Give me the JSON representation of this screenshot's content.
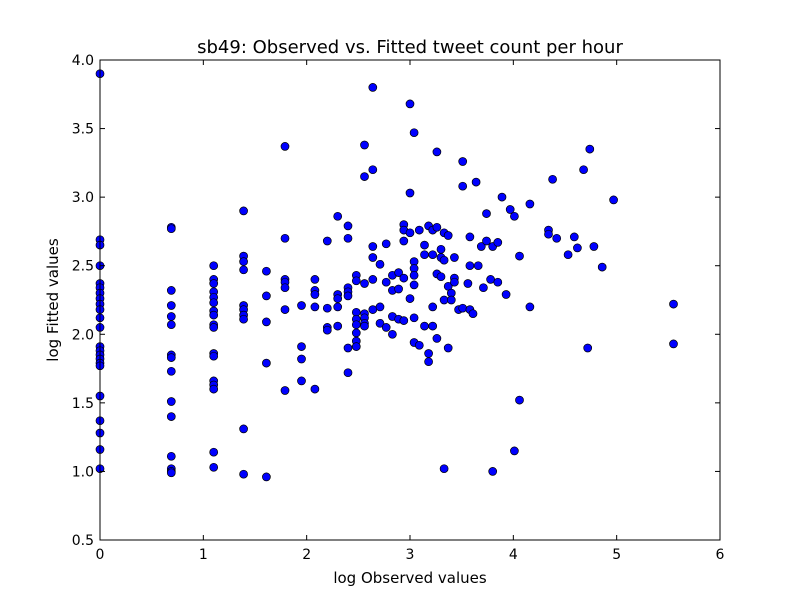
{
  "chart_data": {
    "type": "scatter",
    "title": "sb49: Observed vs. Fitted tweet count per hour",
    "xlabel": "log Observed values",
    "ylabel": "log Fitted values",
    "xlim": [
      0,
      6
    ],
    "ylim": [
      0.5,
      4.0
    ],
    "xticks": [
      "0",
      "1",
      "2",
      "3",
      "4",
      "5",
      "6"
    ],
    "yticks": [
      "0.5",
      "1.0",
      "1.5",
      "2.0",
      "2.5",
      "3.0",
      "3.5",
      "4.0"
    ],
    "grid": false,
    "legend": "none",
    "marker_color": "#0000ff",
    "marker_edge": "#000000",
    "points": [
      [
        0.0,
        3.9
      ],
      [
        0.0,
        2.69
      ],
      [
        0.0,
        2.65
      ],
      [
        0.0,
        2.5
      ],
      [
        0.0,
        2.37
      ],
      [
        0.0,
        2.34
      ],
      [
        0.0,
        2.3
      ],
      [
        0.0,
        2.26
      ],
      [
        0.0,
        2.22
      ],
      [
        0.0,
        2.18
      ],
      [
        0.0,
        2.12
      ],
      [
        0.0,
        2.05
      ],
      [
        0.0,
        1.91
      ],
      [
        0.0,
        1.88
      ],
      [
        0.0,
        1.85
      ],
      [
        0.0,
        1.82
      ],
      [
        0.0,
        1.79
      ],
      [
        0.0,
        1.77
      ],
      [
        0.0,
        1.55
      ],
      [
        0.0,
        1.37
      ],
      [
        0.0,
        1.28
      ],
      [
        0.0,
        1.16
      ],
      [
        0.0,
        1.02
      ],
      [
        0.69,
        2.78
      ],
      [
        0.69,
        2.77
      ],
      [
        0.69,
        2.32
      ],
      [
        0.69,
        2.21
      ],
      [
        0.69,
        2.13
      ],
      [
        0.69,
        2.07
      ],
      [
        0.69,
        1.85
      ],
      [
        0.69,
        1.83
      ],
      [
        0.69,
        1.73
      ],
      [
        0.69,
        1.51
      ],
      [
        0.69,
        1.4
      ],
      [
        0.69,
        1.11
      ],
      [
        0.69,
        1.02
      ],
      [
        0.69,
        1.0
      ],
      [
        0.69,
        0.99
      ],
      [
        1.1,
        2.5
      ],
      [
        1.1,
        2.4
      ],
      [
        1.1,
        2.37
      ],
      [
        1.1,
        2.31
      ],
      [
        1.1,
        2.27
      ],
      [
        1.1,
        2.23
      ],
      [
        1.1,
        2.17
      ],
      [
        1.1,
        2.14
      ],
      [
        1.1,
        2.07
      ],
      [
        1.1,
        2.05
      ],
      [
        1.1,
        1.86
      ],
      [
        1.1,
        1.84
      ],
      [
        1.1,
        1.66
      ],
      [
        1.1,
        1.63
      ],
      [
        1.1,
        1.6
      ],
      [
        1.1,
        1.14
      ],
      [
        1.1,
        1.03
      ],
      [
        1.39,
        2.9
      ],
      [
        1.39,
        2.57
      ],
      [
        1.39,
        2.53
      ],
      [
        1.39,
        2.47
      ],
      [
        1.39,
        2.21
      ],
      [
        1.39,
        2.18
      ],
      [
        1.39,
        2.14
      ],
      [
        1.39,
        2.11
      ],
      [
        1.39,
        1.31
      ],
      [
        1.39,
        0.98
      ],
      [
        1.61,
        2.46
      ],
      [
        1.61,
        2.28
      ],
      [
        1.61,
        2.09
      ],
      [
        1.61,
        1.79
      ],
      [
        1.61,
        0.96
      ],
      [
        1.79,
        3.37
      ],
      [
        1.79,
        2.7
      ],
      [
        1.79,
        2.4
      ],
      [
        1.79,
        2.38
      ],
      [
        1.79,
        2.34
      ],
      [
        1.79,
        2.18
      ],
      [
        1.79,
        1.59
      ],
      [
        1.95,
        2.21
      ],
      [
        1.95,
        1.91
      ],
      [
        1.95,
        1.82
      ],
      [
        1.95,
        1.66
      ],
      [
        2.08,
        2.4
      ],
      [
        2.08,
        2.32
      ],
      [
        2.08,
        2.29
      ],
      [
        2.08,
        2.2
      ],
      [
        2.08,
        1.6
      ],
      [
        2.2,
        2.68
      ],
      [
        2.2,
        2.19
      ],
      [
        2.2,
        2.05
      ],
      [
        2.2,
        2.03
      ],
      [
        2.3,
        2.86
      ],
      [
        2.3,
        2.29
      ],
      [
        2.3,
        2.26
      ],
      [
        2.3,
        2.2
      ],
      [
        2.3,
        2.06
      ],
      [
        2.4,
        2.79
      ],
      [
        2.4,
        2.7
      ],
      [
        2.4,
        2.34
      ],
      [
        2.4,
        2.31
      ],
      [
        2.4,
        2.28
      ],
      [
        2.4,
        1.9
      ],
      [
        2.4,
        1.72
      ],
      [
        2.48,
        2.43
      ],
      [
        2.48,
        2.39
      ],
      [
        2.48,
        2.16
      ],
      [
        2.48,
        2.11
      ],
      [
        2.48,
        2.07
      ],
      [
        2.48,
        2.01
      ],
      [
        2.48,
        1.95
      ],
      [
        2.48,
        1.91
      ],
      [
        2.56,
        3.38
      ],
      [
        2.56,
        3.15
      ],
      [
        2.56,
        2.37
      ],
      [
        2.56,
        2.15
      ],
      [
        2.56,
        2.12
      ],
      [
        2.56,
        2.08
      ],
      [
        2.56,
        2.06
      ],
      [
        2.64,
        3.8
      ],
      [
        2.64,
        3.2
      ],
      [
        2.64,
        2.64
      ],
      [
        2.64,
        2.56
      ],
      [
        2.64,
        2.4
      ],
      [
        2.64,
        2.18
      ],
      [
        2.71,
        2.51
      ],
      [
        2.71,
        2.2
      ],
      [
        2.71,
        2.08
      ],
      [
        2.77,
        2.66
      ],
      [
        2.77,
        2.38
      ],
      [
        2.77,
        2.05
      ],
      [
        2.83,
        2.43
      ],
      [
        2.83,
        2.32
      ],
      [
        2.83,
        2.13
      ],
      [
        2.83,
        2.0
      ],
      [
        2.89,
        2.45
      ],
      [
        2.89,
        2.33
      ],
      [
        2.89,
        2.11
      ],
      [
        2.94,
        2.8
      ],
      [
        2.94,
        2.76
      ],
      [
        2.94,
        2.68
      ],
      [
        2.94,
        2.41
      ],
      [
        2.94,
        2.1
      ],
      [
        3.0,
        3.68
      ],
      [
        3.0,
        3.03
      ],
      [
        3.0,
        2.74
      ],
      [
        3.0,
        2.26
      ],
      [
        3.04,
        3.47
      ],
      [
        3.04,
        2.53
      ],
      [
        3.04,
        2.48
      ],
      [
        3.04,
        2.43
      ],
      [
        3.04,
        2.36
      ],
      [
        3.04,
        2.12
      ],
      [
        3.04,
        1.94
      ],
      [
        3.09,
        2.76
      ],
      [
        3.09,
        1.92
      ],
      [
        3.14,
        2.65
      ],
      [
        3.14,
        2.58
      ],
      [
        3.14,
        2.06
      ],
      [
        3.18,
        2.79
      ],
      [
        3.18,
        1.86
      ],
      [
        3.18,
        1.8
      ],
      [
        3.22,
        2.76
      ],
      [
        3.22,
        2.58
      ],
      [
        3.22,
        2.2
      ],
      [
        3.22,
        2.06
      ],
      [
        3.26,
        3.33
      ],
      [
        3.26,
        2.78
      ],
      [
        3.26,
        2.44
      ],
      [
        3.26,
        1.97
      ],
      [
        3.3,
        2.62
      ],
      [
        3.3,
        2.56
      ],
      [
        3.3,
        2.42
      ],
      [
        3.33,
        2.74
      ],
      [
        3.33,
        2.54
      ],
      [
        3.33,
        2.25
      ],
      [
        3.33,
        1.02
      ],
      [
        3.37,
        2.72
      ],
      [
        3.37,
        2.35
      ],
      [
        3.37,
        1.9
      ],
      [
        3.4,
        2.3
      ],
      [
        3.4,
        2.25
      ],
      [
        3.43,
        2.56
      ],
      [
        3.43,
        2.41
      ],
      [
        3.43,
        2.38
      ],
      [
        3.47,
        2.18
      ],
      [
        3.51,
        3.26
      ],
      [
        3.51,
        3.08
      ],
      [
        3.51,
        2.19
      ],
      [
        3.56,
        2.37
      ],
      [
        3.58,
        2.71
      ],
      [
        3.58,
        2.5
      ],
      [
        3.58,
        2.18
      ],
      [
        3.61,
        2.15
      ],
      [
        3.64,
        3.11
      ],
      [
        3.66,
        2.5
      ],
      [
        3.69,
        2.64
      ],
      [
        3.71,
        2.34
      ],
      [
        3.74,
        2.88
      ],
      [
        3.74,
        2.68
      ],
      [
        3.78,
        2.4
      ],
      [
        3.8,
        2.64
      ],
      [
        3.8,
        1.0
      ],
      [
        3.85,
        2.67
      ],
      [
        3.85,
        2.38
      ],
      [
        3.89,
        3.0
      ],
      [
        3.93,
        2.29
      ],
      [
        3.97,
        2.91
      ],
      [
        4.01,
        2.86
      ],
      [
        4.01,
        1.15
      ],
      [
        4.06,
        2.57
      ],
      [
        4.06,
        1.52
      ],
      [
        4.16,
        2.95
      ],
      [
        4.16,
        2.2
      ],
      [
        4.34,
        2.76
      ],
      [
        4.34,
        2.73
      ],
      [
        4.38,
        3.13
      ],
      [
        4.42,
        2.7
      ],
      [
        4.53,
        2.58
      ],
      [
        4.59,
        2.71
      ],
      [
        4.62,
        2.63
      ],
      [
        4.68,
        3.2
      ],
      [
        4.72,
        1.9
      ],
      [
        4.74,
        3.35
      ],
      [
        4.78,
        2.64
      ],
      [
        4.86,
        2.49
      ],
      [
        4.97,
        2.98
      ],
      [
        5.55,
        2.22
      ],
      [
        5.55,
        1.93
      ]
    ]
  }
}
